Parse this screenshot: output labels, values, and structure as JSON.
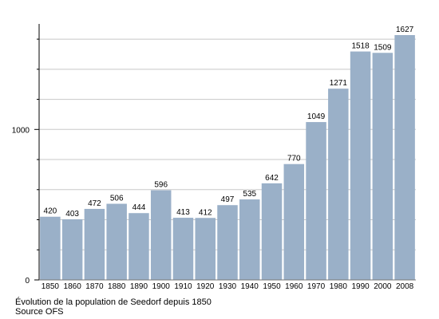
{
  "chart_data": {
    "type": "bar",
    "categories": [
      "1850",
      "1860",
      "1870",
      "1880",
      "1890",
      "1900",
      "1910",
      "1920",
      "1930",
      "1940",
      "1950",
      "1960",
      "1970",
      "1980",
      "1990",
      "2000",
      "2008"
    ],
    "values": [
      420,
      403,
      472,
      506,
      444,
      596,
      413,
      412,
      497,
      535,
      642,
      770,
      1049,
      1271,
      1518,
      1509,
      1627
    ],
    "title": "",
    "xlabel": "",
    "ylabel": "",
    "ylim": [
      0,
      1627
    ],
    "y_tick_labels": [
      "0",
      "1000"
    ],
    "grid": true,
    "legend": "none",
    "bar_color": "#9ab0c8",
    "grid_color": "#c8c8c8",
    "axis_color": "#000000"
  },
  "caption": {
    "line1": "Évolution de la population de Seedorf depuis 1850",
    "line2": "Source OFS"
  }
}
